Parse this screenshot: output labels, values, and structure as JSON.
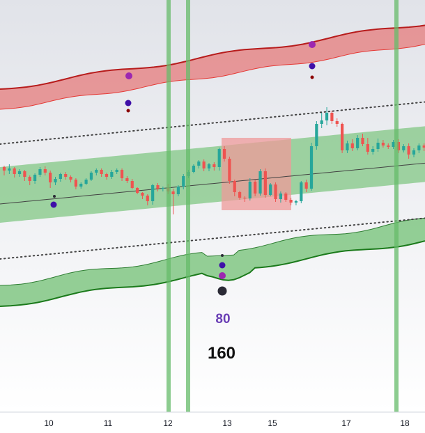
{
  "chart_data": {
    "type": "candlestick",
    "title": "",
    "x_ticks": [
      "10",
      "11",
      "12",
      "13",
      "15",
      "17",
      "18"
    ],
    "annotations": {
      "value_80": "80",
      "value_160": "160"
    },
    "colors": {
      "up_candle": "#26a69a",
      "down_candle": "#ef5350",
      "upper_band_line": "#b71c1c",
      "upper_band_fill": "#e57373",
      "lower_band_line": "#1b7a1b",
      "lower_band_fill": "#81c784",
      "mid_channel_fill": "#81c784",
      "highlight_zone": "#ef9a9a",
      "vertical_highlight": "#66bb6a",
      "dotted_lines": "#424242",
      "basis_line": "#424242",
      "marker_purple": "#9c27b0",
      "marker_indigo": "#3f0fa8",
      "marker_maroon": "#8b0000",
      "marker_dark": "#2a2a35",
      "annotation_80": "#6a3fb5",
      "annotation_160": "#111111"
    },
    "vertical_highlights_near_ticks": [
      "12",
      "12",
      "18"
    ],
    "series": [
      {
        "name": "",
        "kind": "ohlc",
        "values": [
          [
            250,
            245,
            238,
            252
          ],
          [
            245,
            248,
            240,
            254
          ],
          [
            248,
            240,
            235,
            250
          ],
          [
            240,
            244,
            236,
            247
          ],
          [
            244,
            236,
            230,
            246
          ],
          [
            236,
            230,
            224,
            238
          ],
          [
            230,
            239,
            226,
            241
          ],
          [
            239,
            247,
            236,
            250
          ],
          [
            247,
            242,
            238,
            251
          ],
          [
            242,
            228,
            220,
            245
          ],
          [
            228,
            233,
            224,
            236
          ],
          [
            233,
            240,
            229,
            242
          ],
          [
            240,
            236,
            232,
            243
          ],
          [
            236,
            232,
            228,
            238
          ],
          [
            232,
            222,
            218,
            234
          ],
          [
            222,
            226,
            219,
            228
          ],
          [
            226,
            232,
            224,
            234
          ],
          [
            232,
            242,
            230,
            244
          ],
          [
            242,
            246,
            238,
            248
          ],
          [
            246,
            240,
            236,
            248
          ],
          [
            240,
            236,
            232,
            242
          ],
          [
            236,
            243,
            233,
            246
          ],
          [
            243,
            246,
            240,
            248
          ],
          [
            246,
            234,
            230,
            248
          ],
          [
            234,
            230,
            227,
            237
          ],
          [
            230,
            220,
            218,
            233
          ],
          [
            220,
            213,
            211,
            221
          ],
          [
            213,
            209,
            204,
            214
          ],
          [
            209,
            201,
            195,
            211
          ],
          [
            201,
            224,
            196,
            226
          ],
          [
            224,
            219,
            215,
            227
          ],
          [
            219,
            220,
            215,
            222
          ],
          [
            220,
            215,
            211,
            226
          ],
          [
            215,
            211,
            182,
            219
          ],
          [
            211,
            222,
            208,
            224
          ],
          [
            222,
            237,
            218,
            240
          ],
          [
            237,
            243,
            234,
            246
          ],
          [
            243,
            252,
            241,
            254
          ],
          [
            252,
            258,
            248,
            260
          ],
          [
            258,
            248,
            244,
            261
          ],
          [
            248,
            254,
            244,
            256
          ],
          [
            254,
            250,
            245,
            257
          ],
          [
            250,
            276,
            245,
            278
          ],
          [
            276,
            262,
            258,
            280
          ],
          [
            262,
            230,
            226,
            265
          ],
          [
            230,
            214,
            208,
            232
          ],
          [
            214,
            206,
            203,
            216
          ],
          [
            206,
            205,
            200,
            208
          ],
          [
            205,
            229,
            202,
            234
          ],
          [
            229,
            212,
            208,
            232
          ],
          [
            212,
            244,
            209,
            247
          ],
          [
            244,
            210,
            206,
            248
          ],
          [
            210,
            225,
            208,
            227
          ],
          [
            225,
            204,
            200,
            228
          ],
          [
            204,
            212,
            199,
            215
          ],
          [
            212,
            203,
            200,
            214
          ],
          [
            203,
            199,
            195,
            206
          ],
          [
            199,
            201,
            195,
            203
          ],
          [
            201,
            228,
            198,
            230
          ],
          [
            228,
            219,
            214,
            232
          ],
          [
            219,
            280,
            216,
            285
          ],
          [
            280,
            312,
            275,
            316
          ],
          [
            312,
            317,
            306,
            328
          ],
          [
            317,
            328,
            310,
            336
          ],
          [
            328,
            316,
            312,
            331
          ],
          [
            316,
            312,
            308,
            320
          ],
          [
            312,
            274,
            270,
            314
          ],
          [
            274,
            284,
            270,
            288
          ],
          [
            284,
            277,
            273,
            290
          ],
          [
            277,
            292,
            274,
            296
          ],
          [
            292,
            283,
            280,
            298
          ],
          [
            283,
            272,
            268,
            292
          ],
          [
            272,
            276,
            268,
            280
          ],
          [
            276,
            285,
            272,
            291
          ],
          [
            285,
            281,
            278,
            289
          ],
          [
            281,
            279,
            276,
            284
          ],
          [
            279,
            286,
            276,
            289
          ],
          [
            286,
            274,
            270,
            290
          ],
          [
            274,
            280,
            271,
            283
          ],
          [
            280,
            268,
            262,
            284
          ],
          [
            268,
            274,
            264,
            277
          ],
          [
            274,
            281,
            270,
            284
          ],
          [
            281,
            278,
            273,
            284
          ]
        ]
      }
    ],
    "markers": [
      {
        "label": "",
        "color": "purple"
      },
      {
        "label": "",
        "color": "indigo"
      },
      {
        "label": "",
        "color": "maroon"
      },
      {
        "label": "",
        "color": "dark"
      }
    ]
  }
}
